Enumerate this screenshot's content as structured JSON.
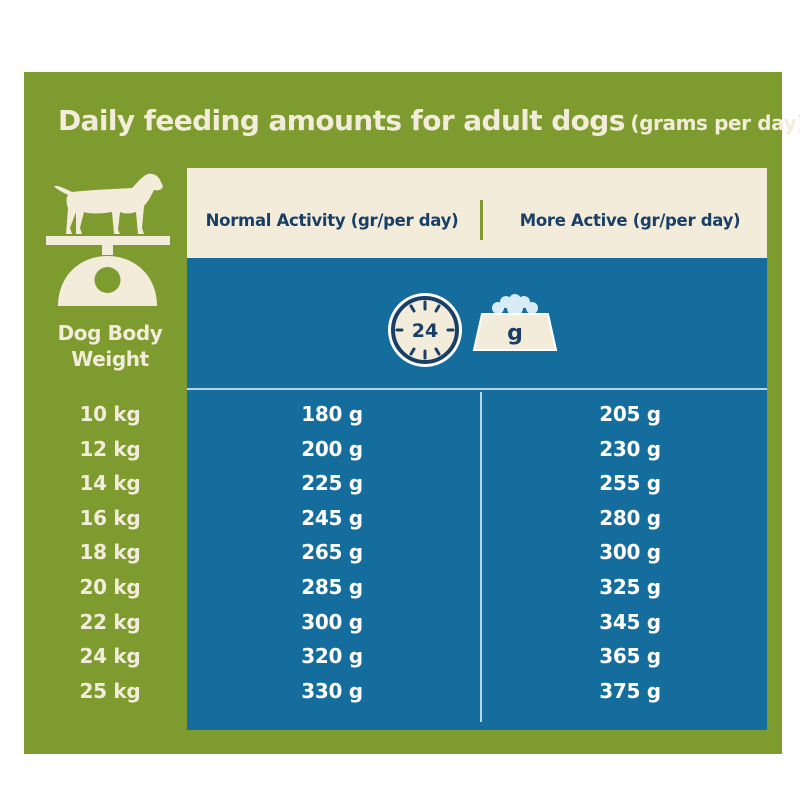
{
  "title": {
    "main": "Daily feeding amounts for adult dogs",
    "sub": "(grams per day):"
  },
  "columns": {
    "weight": [
      "Dog Body",
      "Weight"
    ],
    "normal": "Normal Activity (gr/per day)",
    "active": "More Active (gr/per day)"
  },
  "icons": {
    "clock_label": "24",
    "bowl_label": "g",
    "dog": "dog-silhouette-icon",
    "scale": "weighing-scale-icon"
  },
  "colors": {
    "green": "#7e9b2f",
    "cream": "#f3ecdb",
    "blue": "#156d9e",
    "navy": "#1a3f66"
  },
  "rows": [
    {
      "weight": "10 kg",
      "normal": "180 g",
      "active": "205 g"
    },
    {
      "weight": "12 kg",
      "normal": "200 g",
      "active": "230 g"
    },
    {
      "weight": "14 kg",
      "normal": "225 g",
      "active": "255 g"
    },
    {
      "weight": "16 kg",
      "normal": "245 g",
      "active": "280 g"
    },
    {
      "weight": "18 kg",
      "normal": "265 g",
      "active": "300 g"
    },
    {
      "weight": "20 kg",
      "normal": "285 g",
      "active": "325 g"
    },
    {
      "weight": "22 kg",
      "normal": "300 g",
      "active": "345 g"
    },
    {
      "weight": "24 kg",
      "normal": "320 g",
      "active": "365 g"
    },
    {
      "weight": "25 kg",
      "normal": "330 g",
      "active": "375 g"
    }
  ]
}
